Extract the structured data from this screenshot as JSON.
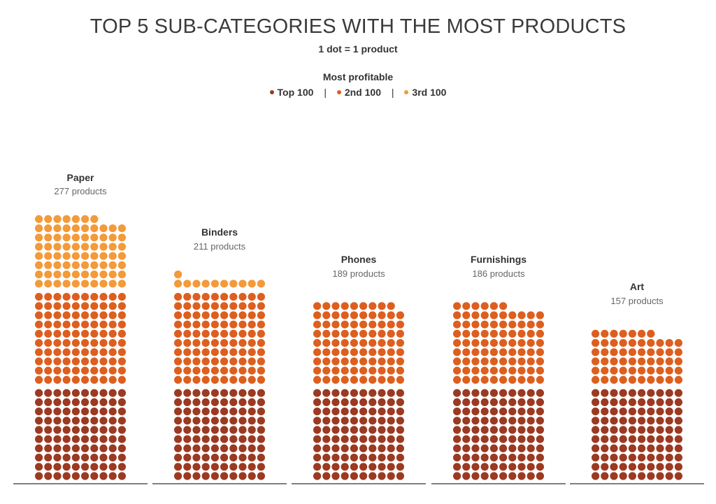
{
  "header": {
    "title": "TOP 5 SUB-CATEGORIES WITH THE MOST PRODUCTS",
    "subtitle": "1 dot = 1 product"
  },
  "legend": {
    "title": "Most profitable",
    "separator": "|",
    "items": [
      {
        "label": "Top 100",
        "color": "#9b3a22"
      },
      {
        "label": "2nd 100",
        "color": "#dd5f1f"
      },
      {
        "label": "3rd 100",
        "color": "#f39a3a"
      }
    ]
  },
  "chart_data": {
    "type": "waffle",
    "title": "TOP 5 SUB-CATEGORIES WITH THE MOST PRODUCTS",
    "subtitle": "1 dot = 1 product",
    "legend_title": "Most profitable",
    "dots_per_row": 10,
    "series_names": [
      "Top 100",
      "2nd 100",
      "3rd 100"
    ],
    "categories": [
      {
        "name": "Paper",
        "count_label": "277 products",
        "total": 277,
        "groups": [
          100,
          100,
          77
        ]
      },
      {
        "name": "Binders",
        "count_label": "211 products",
        "total": 211,
        "groups": [
          100,
          100,
          11
        ]
      },
      {
        "name": "Phones",
        "count_label": "189 products",
        "total": 189,
        "groups": [
          100,
          89
        ]
      },
      {
        "name": "Furnishings",
        "count_label": "186 products",
        "total": 186,
        "groups": [
          100,
          86
        ]
      },
      {
        "name": "Art",
        "count_label": "157 products",
        "total": 157,
        "groups": [
          100,
          57
        ]
      }
    ]
  }
}
